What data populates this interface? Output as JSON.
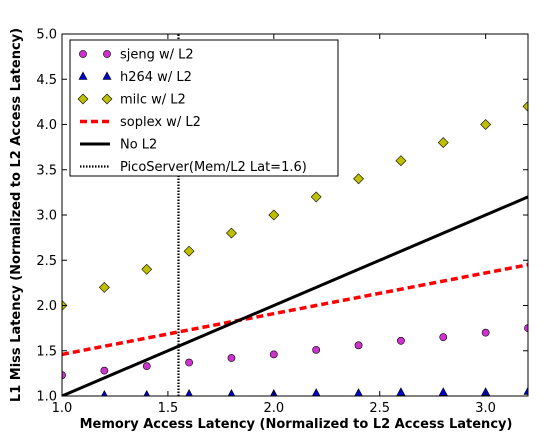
{
  "chart_data": {
    "type": "scatter",
    "xlabel": "Memory Access Latency (Normalized to L2 Access Latency)",
    "ylabel": "L1 Miss Latency (Normalized to L2 Access Latency)",
    "xlim": [
      1.0,
      3.2
    ],
    "ylim": [
      1.0,
      5.0
    ],
    "xticks": [
      "1.0",
      "1.5",
      "2.0",
      "2.5",
      "3.0"
    ],
    "yticks": [
      "1.0",
      "1.5",
      "2.0",
      "2.5",
      "3.0",
      "3.5",
      "4.0",
      "4.5",
      "5.0"
    ],
    "grid": false,
    "legend_position": "upper-left",
    "series": [
      {
        "name": "sjeng w/ L2",
        "kind": "scatter",
        "marker": "circle",
        "color": "#cc33cc",
        "x": [
          1.0,
          1.2,
          1.4,
          1.6,
          1.8,
          2.0,
          2.2,
          2.4,
          2.6,
          2.8,
          3.0,
          3.2
        ],
        "y": [
          1.23,
          1.28,
          1.33,
          1.37,
          1.42,
          1.46,
          1.51,
          1.56,
          1.61,
          1.65,
          1.7,
          1.75
        ]
      },
      {
        "name": "h264 w/ L2",
        "kind": "scatter",
        "marker": "triangle",
        "color": "#0000cc",
        "x": [
          1.2,
          1.4,
          1.6,
          1.8,
          2.0,
          2.2,
          2.4,
          2.6,
          2.8,
          3.0,
          3.2
        ],
        "y": [
          1.01,
          1.01,
          1.02,
          1.02,
          1.02,
          1.03,
          1.03,
          1.04,
          1.04,
          1.04,
          1.05
        ]
      },
      {
        "name": "milc w/ L2",
        "kind": "scatter",
        "marker": "diamond",
        "color": "#bfbf00",
        "x": [
          1.0,
          1.2,
          1.4,
          1.6,
          1.8,
          2.0,
          2.2,
          2.4,
          2.6,
          2.8,
          3.0,
          3.2
        ],
        "y": [
          2.0,
          2.2,
          2.4,
          2.6,
          2.8,
          3.0,
          3.2,
          3.4,
          3.6,
          3.8,
          4.0,
          4.2
        ]
      },
      {
        "name": "soplex w/ L2",
        "kind": "line",
        "style": "dashed",
        "color": "#ff0000",
        "x": [
          1.0,
          3.2
        ],
        "y": [
          1.46,
          2.45
        ]
      },
      {
        "name": "No L2",
        "kind": "line",
        "style": "solid",
        "color": "#000000",
        "x": [
          1.0,
          3.2
        ],
        "y": [
          1.0,
          3.2
        ]
      },
      {
        "name": "PicoServer(Mem/L2 Lat=1.6)",
        "kind": "vline",
        "style": "dotted",
        "color": "#000000",
        "x": [
          1.55,
          1.55
        ],
        "y": [
          1.0,
          5.0
        ]
      }
    ]
  }
}
